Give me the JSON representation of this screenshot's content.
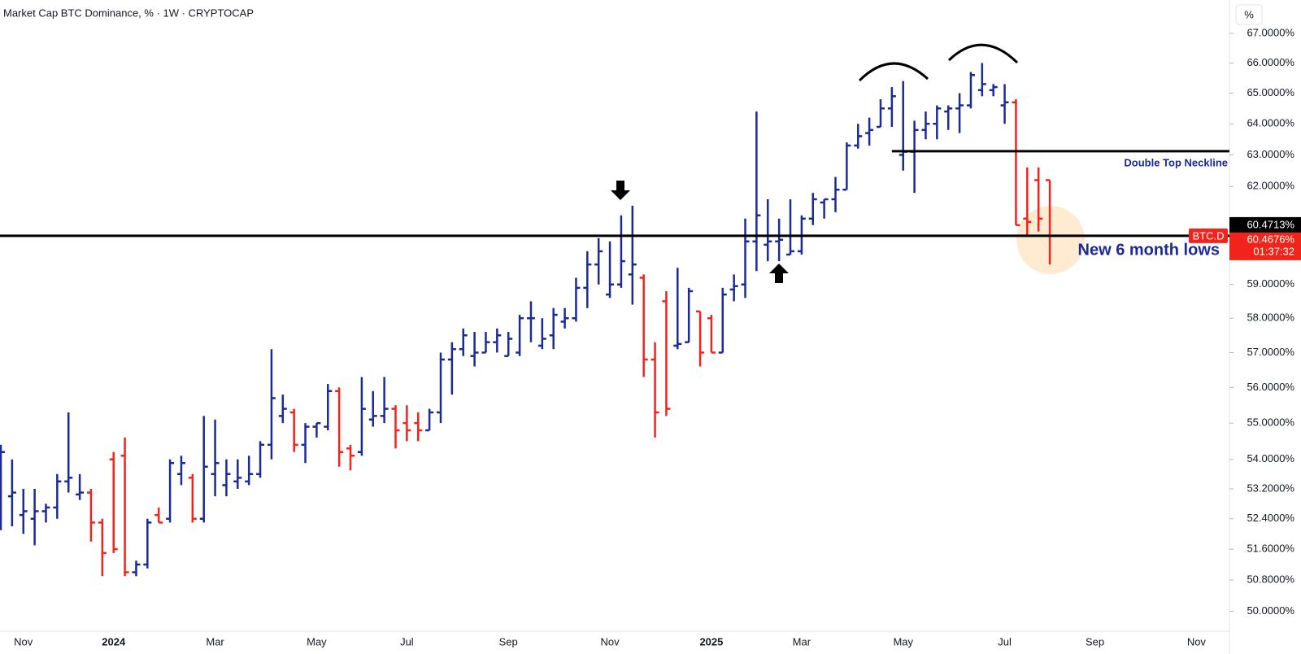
{
  "chart_data": {
    "type": "ohlc",
    "title": "Market Cap BTC Dominance, % · 1W · CRYPTOCAP",
    "unit_label": "%",
    "log_scale": true,
    "grid": false,
    "up_color": "#1b2a94",
    "down_color": "#f2231b",
    "categories": [
      null,
      null,
      "Nov",
      null,
      null,
      null,
      null,
      null,
      null,
      null,
      "2024",
      null,
      null,
      null,
      null,
      null,
      null,
      null,
      null,
      "Mar",
      null,
      null,
      null,
      null,
      null,
      null,
      null,
      null,
      "May",
      null,
      null,
      null,
      null,
      null,
      null,
      null,
      "Jul",
      null,
      null,
      null,
      null,
      null,
      null,
      null,
      null,
      "Sep",
      null,
      null,
      null,
      null,
      null,
      null,
      null,
      null,
      "Nov",
      null,
      null,
      null,
      null,
      null,
      null,
      null,
      null,
      "2025",
      null,
      null,
      null,
      null,
      null,
      null,
      null,
      "Mar",
      null,
      null,
      null,
      null,
      null,
      null,
      null,
      null,
      "May",
      null,
      null,
      null,
      null,
      null,
      null,
      null,
      null,
      "Jul",
      null,
      null,
      null,
      null,
      null,
      null,
      null,
      "Sep",
      null,
      null,
      null,
      null,
      null,
      null,
      null,
      null,
      "Nov",
      null,
      null
    ],
    "open": [
      53.3,
      53.0,
      52.5,
      52.4,
      52.6,
      52.7,
      53.4,
      53.05,
      53.1,
      52.3,
      54.0,
      54.1,
      51.0,
      51.2,
      52.5,
      52.4,
      53.6,
      53.5,
      52.4,
      53.6,
      53.3,
      53.4,
      53.4,
      53.6,
      54.4,
      55.2,
      55.3,
      54.4,
      54.9,
      54.9,
      55.9,
      54.3,
      54.2,
      55.1,
      55.2,
      55.4,
      55.0,
      55.0,
      54.8,
      55.3,
      56.8,
      57.1,
      56.9,
      57.0,
      57.3,
      56.9,
      57.0,
      58.0,
      57.2,
      57.5,
      57.9,
      58.0,
      58.9,
      59.6,
      58.7,
      59.0,
      59.3,
      59.2,
      56.8,
      58.5,
      57.2,
      57.3,
      58.2,
      58.0,
      57.0,
      58.85,
      59.0,
      60.3,
      60.2,
      60.3,
      59.9,
      60.0,
      61.0,
      61.5,
      61.6,
      61.9,
      63.3,
      63.7,
      63.9,
      64.5,
      63.0,
      63.1,
      63.8,
      64.0,
      64.4,
      64.5,
      64.6,
      65.1,
      65.1,
      64.6,
      64.7,
      61.0,
      62.2,
      62.2,
      null,
      null,
      null,
      null,
      null,
      null,
      null,
      null,
      null,
      null,
      null,
      null,
      null,
      null,
      null
    ],
    "high": [
      54.4,
      54.0,
      53.2,
      53.2,
      52.8,
      53.6,
      55.3,
      53.6,
      53.2,
      52.4,
      54.2,
      54.6,
      51.3,
      52.4,
      52.7,
      54.0,
      54.1,
      53.6,
      55.2,
      55.1,
      54.0,
      54.0,
      54.1,
      54.5,
      57.1,
      55.8,
      55.4,
      55.0,
      55.0,
      56.1,
      56.0,
      54.4,
      56.3,
      55.9,
      56.3,
      55.5,
      55.5,
      55.3,
      55.4,
      57.0,
      57.3,
      57.7,
      57.6,
      57.6,
      57.7,
      57.6,
      58.1,
      58.5,
      58.0,
      58.3,
      58.3,
      59.2,
      60.0,
      60.4,
      60.3,
      61.1,
      61.4,
      59.3,
      57.3,
      58.8,
      59.5,
      58.9,
      58.2,
      58.1,
      58.9,
      59.3,
      61.0,
      64.4,
      61.6,
      61.0,
      61.6,
      61.1,
      61.8,
      61.6,
      62.3,
      63.4,
      64.0,
      64.2,
      64.8,
      65.2,
      65.4,
      64.1,
      64.4,
      64.6,
      64.6,
      65.0,
      65.7,
      66.0,
      65.3,
      65.3,
      64.8,
      62.6,
      62.6,
      62.2,
      null,
      null,
      null,
      null,
      null,
      null,
      null,
      null,
      null,
      null,
      null,
      null,
      null,
      null,
      null
    ],
    "low": [
      52.1,
      52.2,
      52.0,
      51.7,
      52.3,
      52.4,
      53.1,
      52.9,
      51.8,
      50.9,
      51.5,
      50.9,
      50.9,
      51.1,
      52.3,
      52.3,
      53.3,
      52.3,
      52.3,
      53.0,
      53.0,
      53.2,
      53.3,
      53.5,
      54.0,
      55.0,
      54.2,
      53.9,
      54.6,
      54.8,
      53.8,
      53.7,
      54.1,
      54.9,
      55.0,
      54.3,
      54.5,
      54.5,
      54.8,
      55.0,
      55.8,
      56.9,
      56.6,
      57.0,
      57.0,
      56.9,
      56.9,
      57.3,
      57.1,
      57.1,
      57.7,
      57.9,
      58.3,
      59.0,
      58.6,
      58.9,
      58.4,
      56.3,
      54.6,
      55.2,
      57.1,
      57.3,
      56.6,
      57.0,
      57.0,
      58.5,
      58.6,
      59.4,
      59.7,
      59.7,
      59.9,
      59.9,
      60.8,
      61.0,
      61.2,
      61.9,
      63.2,
      63.3,
      63.9,
      63.9,
      62.5,
      61.8,
      63.5,
      63.5,
      63.8,
      63.7,
      64.5,
      64.9,
      64.9,
      64.0,
      60.8,
      60.5,
      60.6,
      59.6,
      null,
      null,
      null,
      null,
      null,
      null,
      null,
      null,
      null,
      null,
      null,
      null,
      null,
      null,
      null
    ],
    "close": [
      54.2,
      53.1,
      52.6,
      52.6,
      52.7,
      53.4,
      53.5,
      53.1,
      52.3,
      51.5,
      51.6,
      51.0,
      51.2,
      52.3,
      52.3,
      53.9,
      53.9,
      52.4,
      53.8,
      53.9,
      53.6,
      53.5,
      53.6,
      54.4,
      55.7,
      55.4,
      54.4,
      54.9,
      55.0,
      55.9,
      54.2,
      54.1,
      55.4,
      55.2,
      55.4,
      54.8,
      54.8,
      54.8,
      55.3,
      56.8,
      57.1,
      57.5,
      57.0,
      57.3,
      57.5,
      57.4,
      58.0,
      58.0,
      57.4,
      58.1,
      58.0,
      58.9,
      59.6,
      60.0,
      59.0,
      59.7,
      59.6,
      56.8,
      55.3,
      55.4,
      57.25,
      58.8,
      57.0,
      57.0,
      58.7,
      58.95,
      60.3,
      61.1,
      60.3,
      60.35,
      60.0,
      61.0,
      61.6,
      61.6,
      61.9,
      63.3,
      63.6,
      63.8,
      64.5,
      64.9,
      63.1,
      63.8,
      64.0,
      64.5,
      64.5,
      64.6,
      65.6,
      65.3,
      65.2,
      64.7,
      60.8,
      60.9,
      61.0,
      60.4676,
      null,
      null,
      null,
      null,
      null,
      null,
      null,
      null,
      null,
      null,
      null,
      null,
      null,
      null,
      null
    ],
    "ylim": [
      49.5,
      68.14
    ],
    "yticks": [
      {
        "value": 50,
        "label": "50.0000%"
      },
      {
        "value": 50.8,
        "label": "50.8000%"
      },
      {
        "value": 51.6,
        "label": "51.6000%"
      },
      {
        "value": 52.4,
        "label": "52.4000%"
      },
      {
        "value": 53.2,
        "label": "53.2000%"
      },
      {
        "value": 54,
        "label": "54.0000%"
      },
      {
        "value": 55,
        "label": "55.0000%"
      },
      {
        "value": 56,
        "label": "56.0000%"
      },
      {
        "value": 57,
        "label": "57.0000%"
      },
      {
        "value": 58,
        "label": "58.0000%"
      },
      {
        "value": 59,
        "label": "59.0000%"
      },
      {
        "value": 62,
        "label": "62.0000%"
      },
      {
        "value": 63,
        "label": "63.0000%"
      },
      {
        "value": 64,
        "label": "64.0000%"
      },
      {
        "value": 65,
        "label": "65.0000%"
      },
      {
        "value": 66,
        "label": "66.0000%"
      },
      {
        "value": 67,
        "label": "67.0000%"
      }
    ],
    "hline": {
      "value": 60.4713,
      "label": "60.4713%"
    },
    "neckline": {
      "value": 63.12,
      "label": "Double Top Neckline"
    },
    "last_price": {
      "symbol": "BTC.D",
      "label": "60.4676%",
      "countdown": "01:37:32"
    },
    "annotation": "New 6 month lows"
  }
}
